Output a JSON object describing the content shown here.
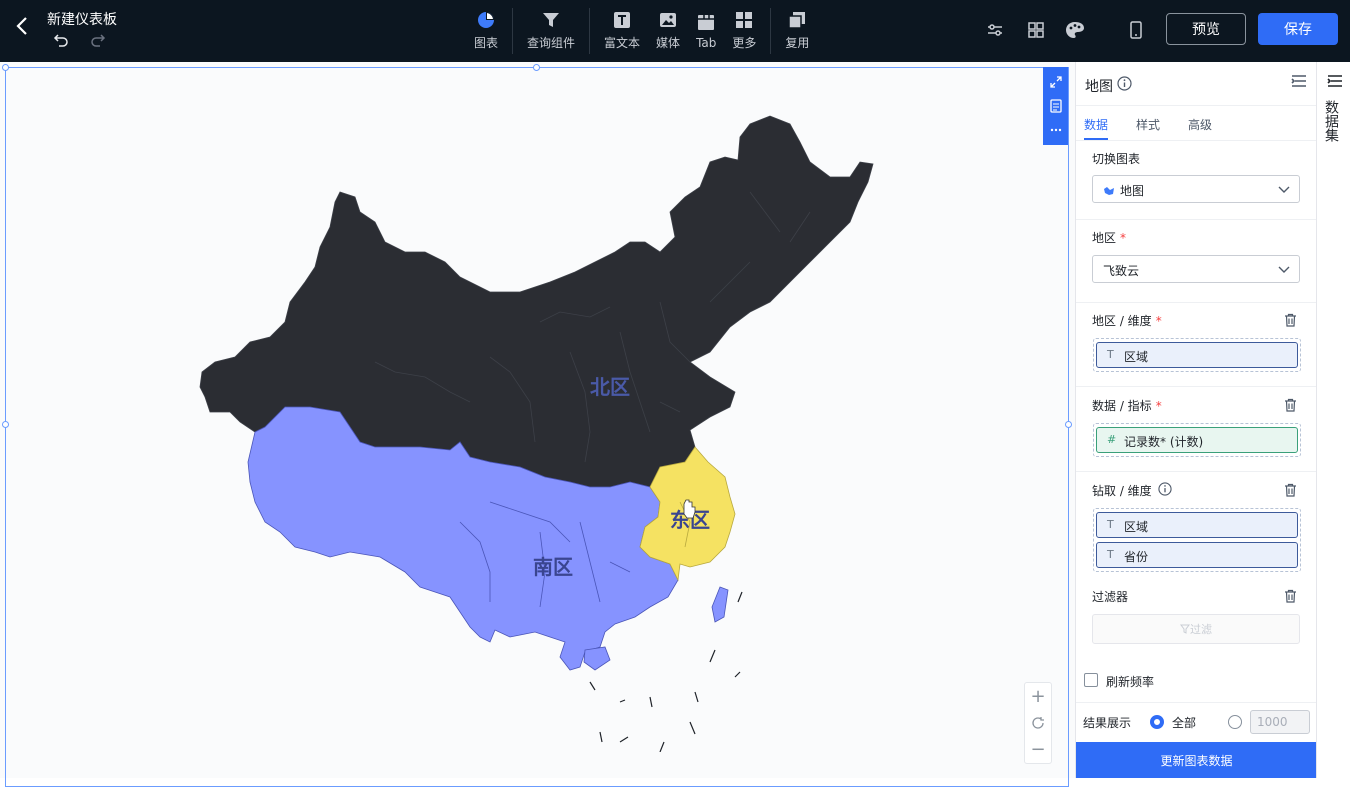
{
  "header": {
    "title": "新建仪表板",
    "tools": [
      {
        "label": "图表",
        "icon": "pie-chart-icon"
      },
      {
        "label": "查询组件",
        "icon": "funnel-icon"
      },
      {
        "label": "富文本",
        "icon": "text-icon"
      },
      {
        "label": "媒体",
        "icon": "image-icon"
      },
      {
        "label": "Tab",
        "icon": "tab-icon"
      },
      {
        "label": "更多",
        "icon": "grid-icon"
      },
      {
        "label": "复用",
        "icon": "copy-icon"
      }
    ],
    "preview_label": "预览",
    "save_label": "保存"
  },
  "map": {
    "regions": [
      {
        "label": "北区",
        "color": "#2b2d33"
      },
      {
        "label": "南区",
        "color": "#8693ff"
      },
      {
        "label": "东区",
        "color": "#f5e262"
      }
    ]
  },
  "panel": {
    "title": "地图",
    "tabs": [
      "数据",
      "样式",
      "高级"
    ],
    "active_tab": "数据",
    "switch_chart": {
      "label": "切换图表",
      "value": "地图"
    },
    "region": {
      "label": "地区",
      "value": "飞致云"
    },
    "dimension": {
      "label": "地区 / 维度",
      "fields": [
        {
          "type": "T",
          "name": "区域"
        }
      ]
    },
    "metric": {
      "label": "数据 / 指标",
      "fields": [
        {
          "type": "#",
          "name": "记录数* (计数)"
        }
      ]
    },
    "drill": {
      "label": "钻取 / 维度",
      "fields": [
        {
          "type": "T",
          "name": "区域"
        },
        {
          "type": "T",
          "name": "省份"
        }
      ]
    },
    "filter": {
      "label": "过滤器",
      "button": "过滤"
    },
    "refresh": {
      "label": "刷新频率"
    },
    "result": {
      "label": "结果展示",
      "all_label": "全部",
      "count_placeholder": "1000"
    },
    "update_button": "更新图表数据"
  },
  "dataset_tab": {
    "label": "数据集"
  },
  "colors": {
    "accent": "#2f6cf6",
    "topbar": "#0c1620"
  }
}
